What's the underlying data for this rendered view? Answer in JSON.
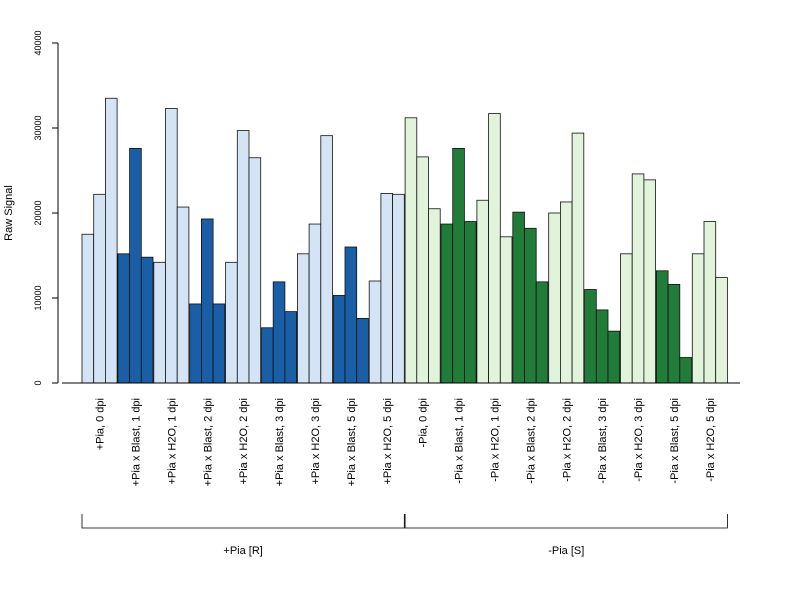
{
  "chart_data": {
    "type": "bar",
    "title": "",
    "xlabel": "",
    "ylabel": "Raw Signal",
    "ylim": [
      0,
      40000
    ],
    "yticks": [
      0,
      10000,
      20000,
      30000,
      40000
    ],
    "grid": false,
    "legend": "none",
    "categories": [
      "+Pia, 0 dpi",
      "+Pia x Blast, 1 dpi",
      "+Pia x H2O, 1 dpi",
      "+Pia x Blast, 2 dpi",
      "+Pia x H2O, 2 dpi",
      "+Pia x Blast, 3 dpi",
      "+Pia x H2O, 3 dpi",
      "+Pia x Blast, 5 dpi",
      "+Pia x H2O, 5 dpi",
      "-Pia, 0 dpi",
      "-Pia x Blast, 1 dpi",
      "-Pia x H2O, 1 dpi",
      "-Pia x Blast, 2 dpi",
      "-Pia x H2O, 2 dpi",
      "-Pia x Blast, 3 dpi",
      "-Pia x H2O, 3 dpi",
      "-Pia x Blast, 5 dpi",
      "-Pia x H2O, 5 dpi"
    ],
    "replicates": [
      [
        17500,
        22200,
        33500
      ],
      [
        15200,
        27600,
        14800
      ],
      [
        14200,
        32300,
        20700
      ],
      [
        9300,
        19300,
        9300
      ],
      [
        14200,
        29700,
        26500
      ],
      [
        6500,
        11900,
        8400
      ],
      [
        15200,
        18700,
        29100
      ],
      [
        10300,
        16000,
        7600
      ],
      [
        12000,
        22300,
        22200
      ],
      [
        31200,
        26600,
        20500
      ],
      [
        18700,
        27600,
        19000
      ],
      [
        21500,
        31700,
        17200
      ],
      [
        20100,
        18200,
        11900
      ],
      [
        20000,
        21300,
        29400
      ],
      [
        11000,
        8600,
        6100
      ],
      [
        15200,
        24600,
        23900
      ],
      [
        13200,
        11600,
        3000
      ],
      [
        15200,
        19000,
        12400
      ]
    ],
    "bar_colors": [
      "#d4e4f4",
      "#1a5ea6",
      "#d4e4f4",
      "#1a5ea6",
      "#d4e4f4",
      "#1a5ea6",
      "#d4e4f4",
      "#1a5ea6",
      "#d4e4f4",
      "#e1f3da",
      "#217c3a",
      "#e1f3da",
      "#217c3a",
      "#e1f3da",
      "#217c3a",
      "#e1f3da",
      "#217c3a",
      "#e1f3da"
    ],
    "groups": [
      {
        "label": "+Pia [R]",
        "first_category": 0,
        "last_category": 8
      },
      {
        "label": "-Pia [S]",
        "first_category": 9,
        "last_category": 17
      }
    ]
  }
}
